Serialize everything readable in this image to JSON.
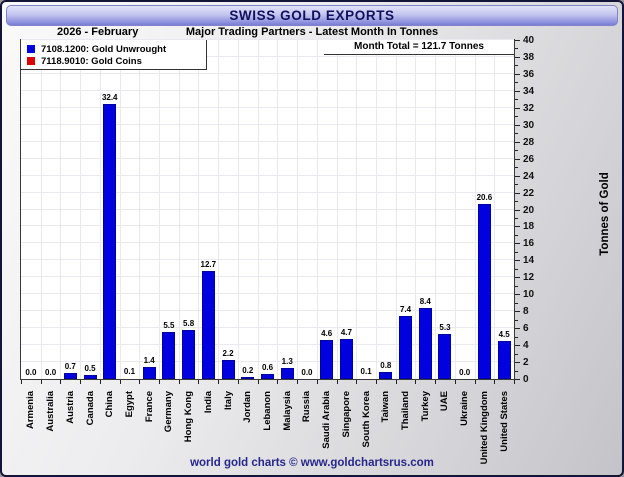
{
  "title": "SWISS GOLD EXPORTS",
  "header": {
    "date_label": "2026 - February",
    "subtitle": "Major Trading Partners - Latest Month In Tonnes"
  },
  "legend": {
    "items": [
      {
        "label": "7108.1200: Gold Unwrought",
        "color": "#0000e0"
      },
      {
        "label": "7118.9010: Gold Coins",
        "color": "#dd0000"
      }
    ]
  },
  "annotations": {
    "month_total": "Month Total = 121.7 Tonnes"
  },
  "footer": {
    "credit": "world gold charts © www.goldchartsrus.com"
  },
  "colors": {
    "bar": "#0101e0",
    "bar_edge": "#0000a0",
    "grid": "#e9e9f0",
    "axis": "#222222"
  },
  "chart_data": {
    "type": "bar",
    "series_name": "7108.1200: Gold Unwrought",
    "categories": [
      "Armenia",
      "Australia",
      "Austria",
      "Canada",
      "China",
      "Egypt",
      "France",
      "Germany",
      "Hong Kong",
      "India",
      "Italy",
      "Jordan",
      "Lebanon",
      "Malaysia",
      "Russia",
      "Saudi Arabia",
      "Singapore",
      "South Korea",
      "Taiwan",
      "Thailand",
      "Turkey",
      "UAE",
      "Ukraine",
      "United Kingdom",
      "United States"
    ],
    "values": [
      0.0,
      0.0,
      0.7,
      0.5,
      32.4,
      0.1,
      1.4,
      5.5,
      5.8,
      12.7,
      2.2,
      0.2,
      0.6,
      1.3,
      0.0,
      4.6,
      4.7,
      0.1,
      0.8,
      7.4,
      8.4,
      5.3,
      0.0,
      20.6,
      4.5
    ],
    "value_labels": true,
    "ylabel": "Tonnes of Gold",
    "ylim": [
      0,
      40
    ],
    "ytick_step": 2,
    "grid": true,
    "legend_position": "top-left"
  }
}
